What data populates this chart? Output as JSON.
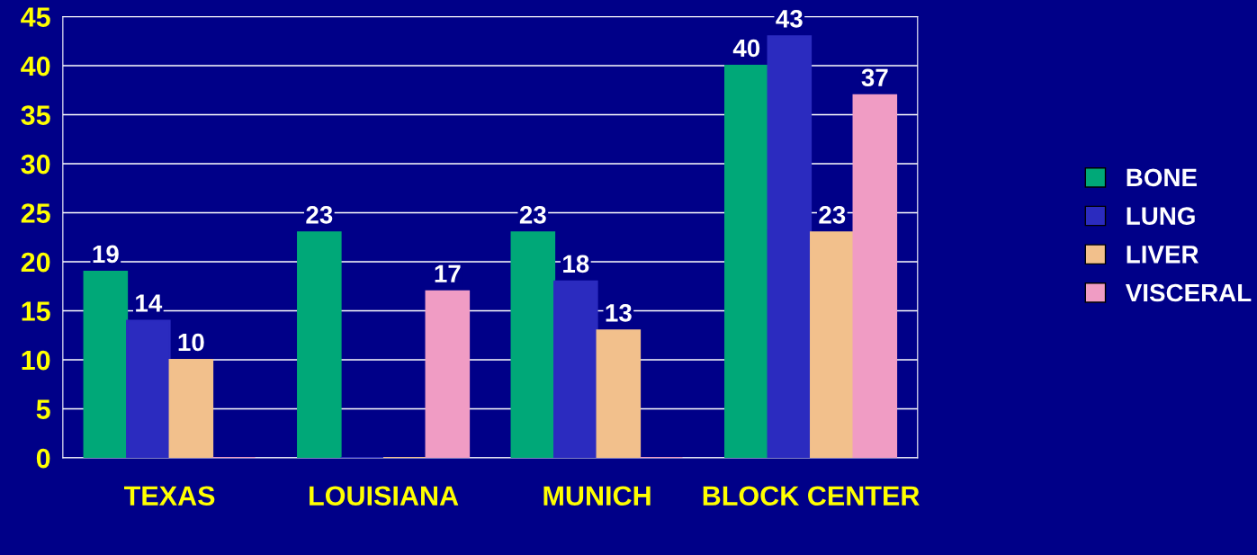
{
  "chart_data": {
    "type": "bar",
    "categories": [
      "TEXAS",
      "LOUISIANA",
      "MUNICH",
      "BLOCK CENTER"
    ],
    "series": [
      {
        "name": "BONE",
        "color": "#00a878",
        "values": [
          19,
          23,
          23,
          40
        ],
        "value_labels": [
          "19",
          "23",
          "23",
          "40"
        ]
      },
      {
        "name": "LUNG",
        "color": "#2b2bbf",
        "values": [
          14,
          0,
          18,
          43
        ],
        "value_labels": [
          "14",
          null,
          "18",
          "43"
        ]
      },
      {
        "name": "LIVER",
        "color": "#f2c08c",
        "values": [
          10,
          0,
          13,
          23
        ],
        "value_labels": [
          "10",
          null,
          "13",
          "23"
        ]
      },
      {
        "name": "VISCERAL",
        "color": "#f09cc4",
        "values": [
          0,
          17,
          0,
          37
        ],
        "value_labels": [
          null,
          "17",
          null,
          "37"
        ]
      }
    ],
    "ylim": [
      0,
      45
    ],
    "yticks": [
      0,
      5,
      10,
      15,
      20,
      25,
      30,
      35,
      40,
      45
    ],
    "grid": "y",
    "legend": "right"
  }
}
